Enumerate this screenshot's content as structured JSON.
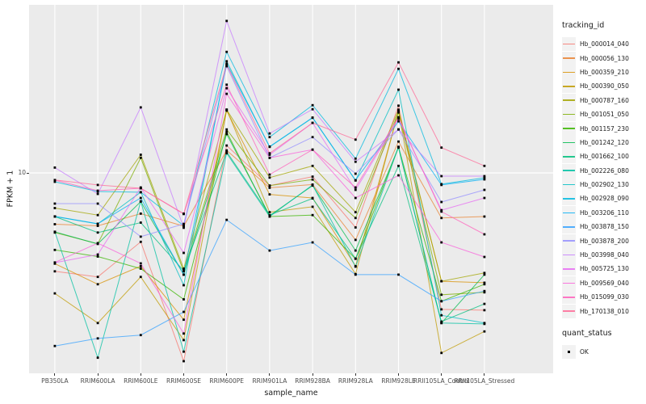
{
  "axes": {
    "y_tick_label": "10",
    "x_title": "sample_name",
    "y_title": "FPKM + 1"
  },
  "legend": {
    "tracking_title": "tracking_id",
    "quant_title": "quant_status",
    "quant_label": "OK",
    "quant_marker_color": "#000000"
  },
  "panel": {
    "background": "#EBEBEB",
    "gridline_color": "#FFFFFF",
    "marker_color": "#000000"
  },
  "chart_data": {
    "type": "line",
    "title": "",
    "xlabel": "sample_name",
    "ylabel": "FPKM + 1",
    "y_scale": "log10",
    "y_ticks": [
      10
    ],
    "ylim": [
      1.2,
      60
    ],
    "grid": true,
    "legend_position": "right",
    "point_shape": "filled-square",
    "quant_status": "OK",
    "categories": [
      "PB350LA",
      "RRIM600LA",
      "RRIM600LE",
      "RRIM600SE",
      "RRIM600PE",
      "RRIM901LA",
      "RRIM928BA",
      "RRIM928LA",
      "RRIM928LE",
      "RRII105LA_Control",
      "RRII105LA_Stressed"
    ],
    "series": [
      {
        "name": "Hb_000014_040",
        "color": "#F8766D",
        "values": [
          3.4,
          3.2,
          4.7,
          1.27,
          13.5,
          8.7,
          9.6,
          5.5,
          20.9,
          2.24,
          2.22
        ]
      },
      {
        "name": "Hb_000056_130",
        "color": "#EA8331",
        "values": [
          5.7,
          5.6,
          6.4,
          5.58,
          12.8,
          8.5,
          8.8,
          4.8,
          14.1,
          6.1,
          6.2
        ]
      },
      {
        "name": "Hb_000359_210",
        "color": "#D89000",
        "values": [
          3.7,
          2.95,
          3.6,
          2.0,
          19.8,
          7.9,
          7.6,
          3.6,
          19.6,
          3.05,
          3.0
        ]
      },
      {
        "name": "Hb_000390_050",
        "color": "#C09B00",
        "values": [
          2.67,
          1.93,
          3.2,
          1.6,
          20.0,
          6.5,
          6.9,
          3.3,
          19.8,
          1.39,
          1.76
        ]
      },
      {
        "name": "Hb_000787_160",
        "color": "#A3A500",
        "values": [
          6.8,
          6.3,
          12.2,
          3.5,
          20.0,
          9.5,
          10.8,
          6.5,
          20.0,
          3.05,
          3.34
        ]
      },
      {
        "name": "Hb_001051_050",
        "color": "#7CAE00",
        "values": [
          5.2,
          4.6,
          11.8,
          3.4,
          16.1,
          8.7,
          9.3,
          6.1,
          19.4,
          2.63,
          2.7
        ]
      },
      {
        "name": "Hb_001157_230",
        "color": "#39B600",
        "values": [
          4.3,
          4.0,
          3.5,
          2.5,
          15.7,
          6.2,
          6.3,
          3.9,
          13.3,
          2.45,
          2.95
        ]
      },
      {
        "name": "Hb_001242_120",
        "color": "#00BB4E",
        "values": [
          5.24,
          4.59,
          7.3,
          3.28,
          15.3,
          6.26,
          8.7,
          4.27,
          13.2,
          1.93,
          3.28
        ]
      },
      {
        "name": "Hb_001662_100",
        "color": "#00BF7D",
        "values": [
          6.2,
          5.2,
          5.8,
          3.42,
          12.6,
          6.3,
          7.56,
          3.91,
          10.8,
          1.96,
          2.38
        ]
      },
      {
        "name": "Hb_002226_080",
        "color": "#00C1A3",
        "values": [
          5.25,
          1.32,
          7.33,
          1.41,
          12.4,
          6.2,
          8.76,
          3.58,
          13.3,
          1.93,
          1.91
        ]
      },
      {
        "name": "Hb_002902_130",
        "color": "#00BFC4",
        "values": [
          6.2,
          5.72,
          8.1,
          2.92,
          34.0,
          13.3,
          18.3,
          9.2,
          24.9,
          2.1,
          1.93
        ]
      },
      {
        "name": "Hb_002928_090",
        "color": "#00BAE0",
        "values": [
          9.07,
          8.16,
          8.09,
          5.61,
          37.7,
          14.8,
          21.0,
          11.7,
          31.3,
          8.84,
          9.48
        ]
      },
      {
        "name": "Hb_003206_110",
        "color": "#00B0F6",
        "values": [
          6.21,
          5.73,
          7.6,
          3.28,
          33.1,
          13.35,
          18.35,
          9.23,
          17.6,
          8.76,
          9.32
        ]
      },
      {
        "name": "Hb_003878_150",
        "color": "#35A2FF",
        "values": [
          1.5,
          1.63,
          1.69,
          2.18,
          5.98,
          4.27,
          4.67,
          3.28,
          3.28,
          2.45,
          2.74
        ]
      },
      {
        "name": "Hb_003878_200",
        "color": "#9590FF",
        "values": [
          7.14,
          7.14,
          4.97,
          5.72,
          32.2,
          11.8,
          14.8,
          9.91,
          16.1,
          7.27,
          8.3
        ]
      },
      {
        "name": "Hb_003998_040",
        "color": "#C77CFF",
        "values": [
          10.6,
          7.94,
          20.5,
          5.48,
          52.9,
          15.4,
          20.1,
          11.3,
          16.1,
          9.65,
          9.65
        ]
      },
      {
        "name": "Hb_005725_130",
        "color": "#E76BF3",
        "values": [
          3.74,
          4.09,
          8.53,
          4.16,
          25.3,
          12.2,
          17.3,
          8.3,
          18.1,
          6.65,
          7.6
        ]
      },
      {
        "name": "Hb_009569_040",
        "color": "#FA62DB",
        "values": [
          3.75,
          4.63,
          3.71,
          1.72,
          23.8,
          11.8,
          12.9,
          7.6,
          9.74,
          4.67,
          3.98
        ]
      },
      {
        "name": "Hb_015099_030",
        "color": "#FF62BC",
        "values": [
          9.23,
          8.23,
          8.45,
          6.37,
          26.3,
          9.82,
          12.9,
          8.53,
          18.4,
          6.54,
          5.1
        ]
      },
      {
        "name": "Hb_170138_010",
        "color": "#FF6A98",
        "values": [
          9.25,
          8.76,
          8.45,
          6.4,
          32.8,
          12.4,
          17.3,
          14.4,
          33.6,
          13.2,
          10.8
        ]
      }
    ]
  }
}
